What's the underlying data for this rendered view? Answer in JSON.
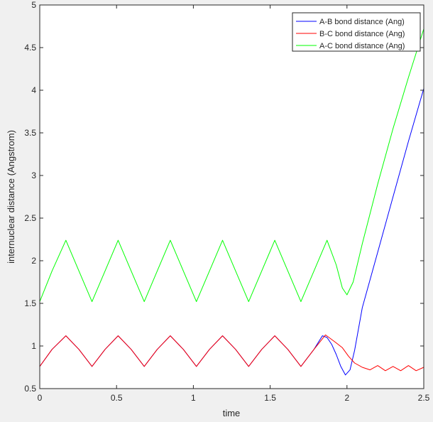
{
  "chart_data": {
    "type": "line",
    "title": "",
    "xlabel": "time",
    "ylabel": "internuclear distance (Angstrom)",
    "xlim": [
      0,
      2.5
    ],
    "ylim": [
      0.5,
      5
    ],
    "x_ticks": [
      "0",
      "0.5",
      "1",
      "1.5",
      "2",
      "2.5"
    ],
    "y_ticks": [
      "0.5",
      "1",
      "1.5",
      "2",
      "2.5",
      "3",
      "3.5",
      "4",
      "4.5",
      "5"
    ],
    "grid": false,
    "legend_position": "top-right",
    "series": [
      {
        "name": "A-B bond distance (Ang)",
        "color": "#0000ff",
        "x": [
          0,
          0.08,
          0.17,
          0.255,
          0.34,
          0.425,
          0.51,
          0.595,
          0.68,
          0.765,
          0.85,
          0.935,
          1.02,
          1.105,
          1.19,
          1.275,
          1.36,
          1.445,
          1.53,
          1.615,
          1.7,
          1.785,
          1.84,
          1.87,
          1.9,
          1.93,
          1.96,
          1.99,
          2.02,
          2.05,
          2.1,
          2.2,
          2.3,
          2.4,
          2.5
        ],
        "y": [
          0.76,
          0.96,
          1.12,
          0.96,
          0.76,
          0.96,
          1.12,
          0.96,
          0.76,
          0.96,
          1.12,
          0.96,
          0.76,
          0.96,
          1.12,
          0.96,
          0.76,
          0.96,
          1.12,
          0.96,
          0.76,
          0.96,
          1.12,
          1.1,
          1.02,
          0.9,
          0.76,
          0.66,
          0.72,
          0.95,
          1.45,
          2.1,
          2.75,
          3.4,
          4.02
        ]
      },
      {
        "name": "B-C bond distance (Ang)",
        "color": "#ff0000",
        "x": [
          0,
          0.08,
          0.17,
          0.255,
          0.34,
          0.425,
          0.51,
          0.595,
          0.68,
          0.765,
          0.85,
          0.935,
          1.02,
          1.105,
          1.19,
          1.275,
          1.36,
          1.445,
          1.53,
          1.615,
          1.7,
          1.785,
          1.86,
          1.92,
          1.97,
          2.01,
          2.05,
          2.1,
          2.15,
          2.2,
          2.25,
          2.3,
          2.35,
          2.4,
          2.45,
          2.5
        ],
        "y": [
          0.76,
          0.96,
          1.12,
          0.96,
          0.76,
          0.96,
          1.12,
          0.96,
          0.76,
          0.96,
          1.12,
          0.96,
          0.76,
          0.96,
          1.12,
          0.96,
          0.76,
          0.96,
          1.12,
          0.96,
          0.76,
          0.96,
          1.13,
          1.05,
          0.98,
          0.88,
          0.8,
          0.75,
          0.72,
          0.77,
          0.71,
          0.76,
          0.71,
          0.77,
          0.71,
          0.75
        ]
      },
      {
        "name": "A-C bond distance (Ang)",
        "color": "#00ff00",
        "x": [
          0,
          0.08,
          0.17,
          0.255,
          0.34,
          0.425,
          0.51,
          0.595,
          0.68,
          0.765,
          0.85,
          0.935,
          1.02,
          1.105,
          1.19,
          1.275,
          1.36,
          1.445,
          1.53,
          1.615,
          1.7,
          1.785,
          1.87,
          1.93,
          1.97,
          2.0,
          2.04,
          2.1,
          2.2,
          2.3,
          2.4,
          2.5
        ],
        "y": [
          1.52,
          1.88,
          2.24,
          1.88,
          1.52,
          1.88,
          2.24,
          1.88,
          1.52,
          1.88,
          2.24,
          1.88,
          1.52,
          1.88,
          2.24,
          1.88,
          1.52,
          1.88,
          2.24,
          1.88,
          1.52,
          1.88,
          2.24,
          1.95,
          1.68,
          1.6,
          1.75,
          2.2,
          2.9,
          3.55,
          4.15,
          4.72
        ]
      }
    ]
  }
}
